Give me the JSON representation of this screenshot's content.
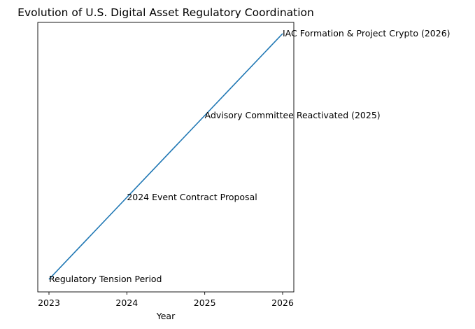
{
  "chart_data": {
    "type": "line",
    "title": "Evolution of U.S. Digital Asset Regulatory Coordination",
    "xlabel": "Year",
    "ylabel": "",
    "x": [
      2023,
      2024,
      2025,
      2026
    ],
    "x_ticks": [
      "2023",
      "2024",
      "2025",
      "2026"
    ],
    "y_ticks_visible": false,
    "grid": false,
    "legend": "none",
    "series": [
      {
        "values": [
          1,
          2,
          3,
          4
        ],
        "color": "#1f77b4"
      }
    ],
    "annotations": [
      {
        "x": 2023,
        "y": 1,
        "text": "Regulatory Tension Period"
      },
      {
        "x": 2024,
        "y": 2,
        "text": "2024 Event Contract Proposal"
      },
      {
        "x": 2025,
        "y": 3,
        "text": "Advisory Committee Reactivated (2025)"
      },
      {
        "x": 2026,
        "y": 4,
        "text": "IAC Formation & Project Crypto (2026)"
      }
    ]
  }
}
